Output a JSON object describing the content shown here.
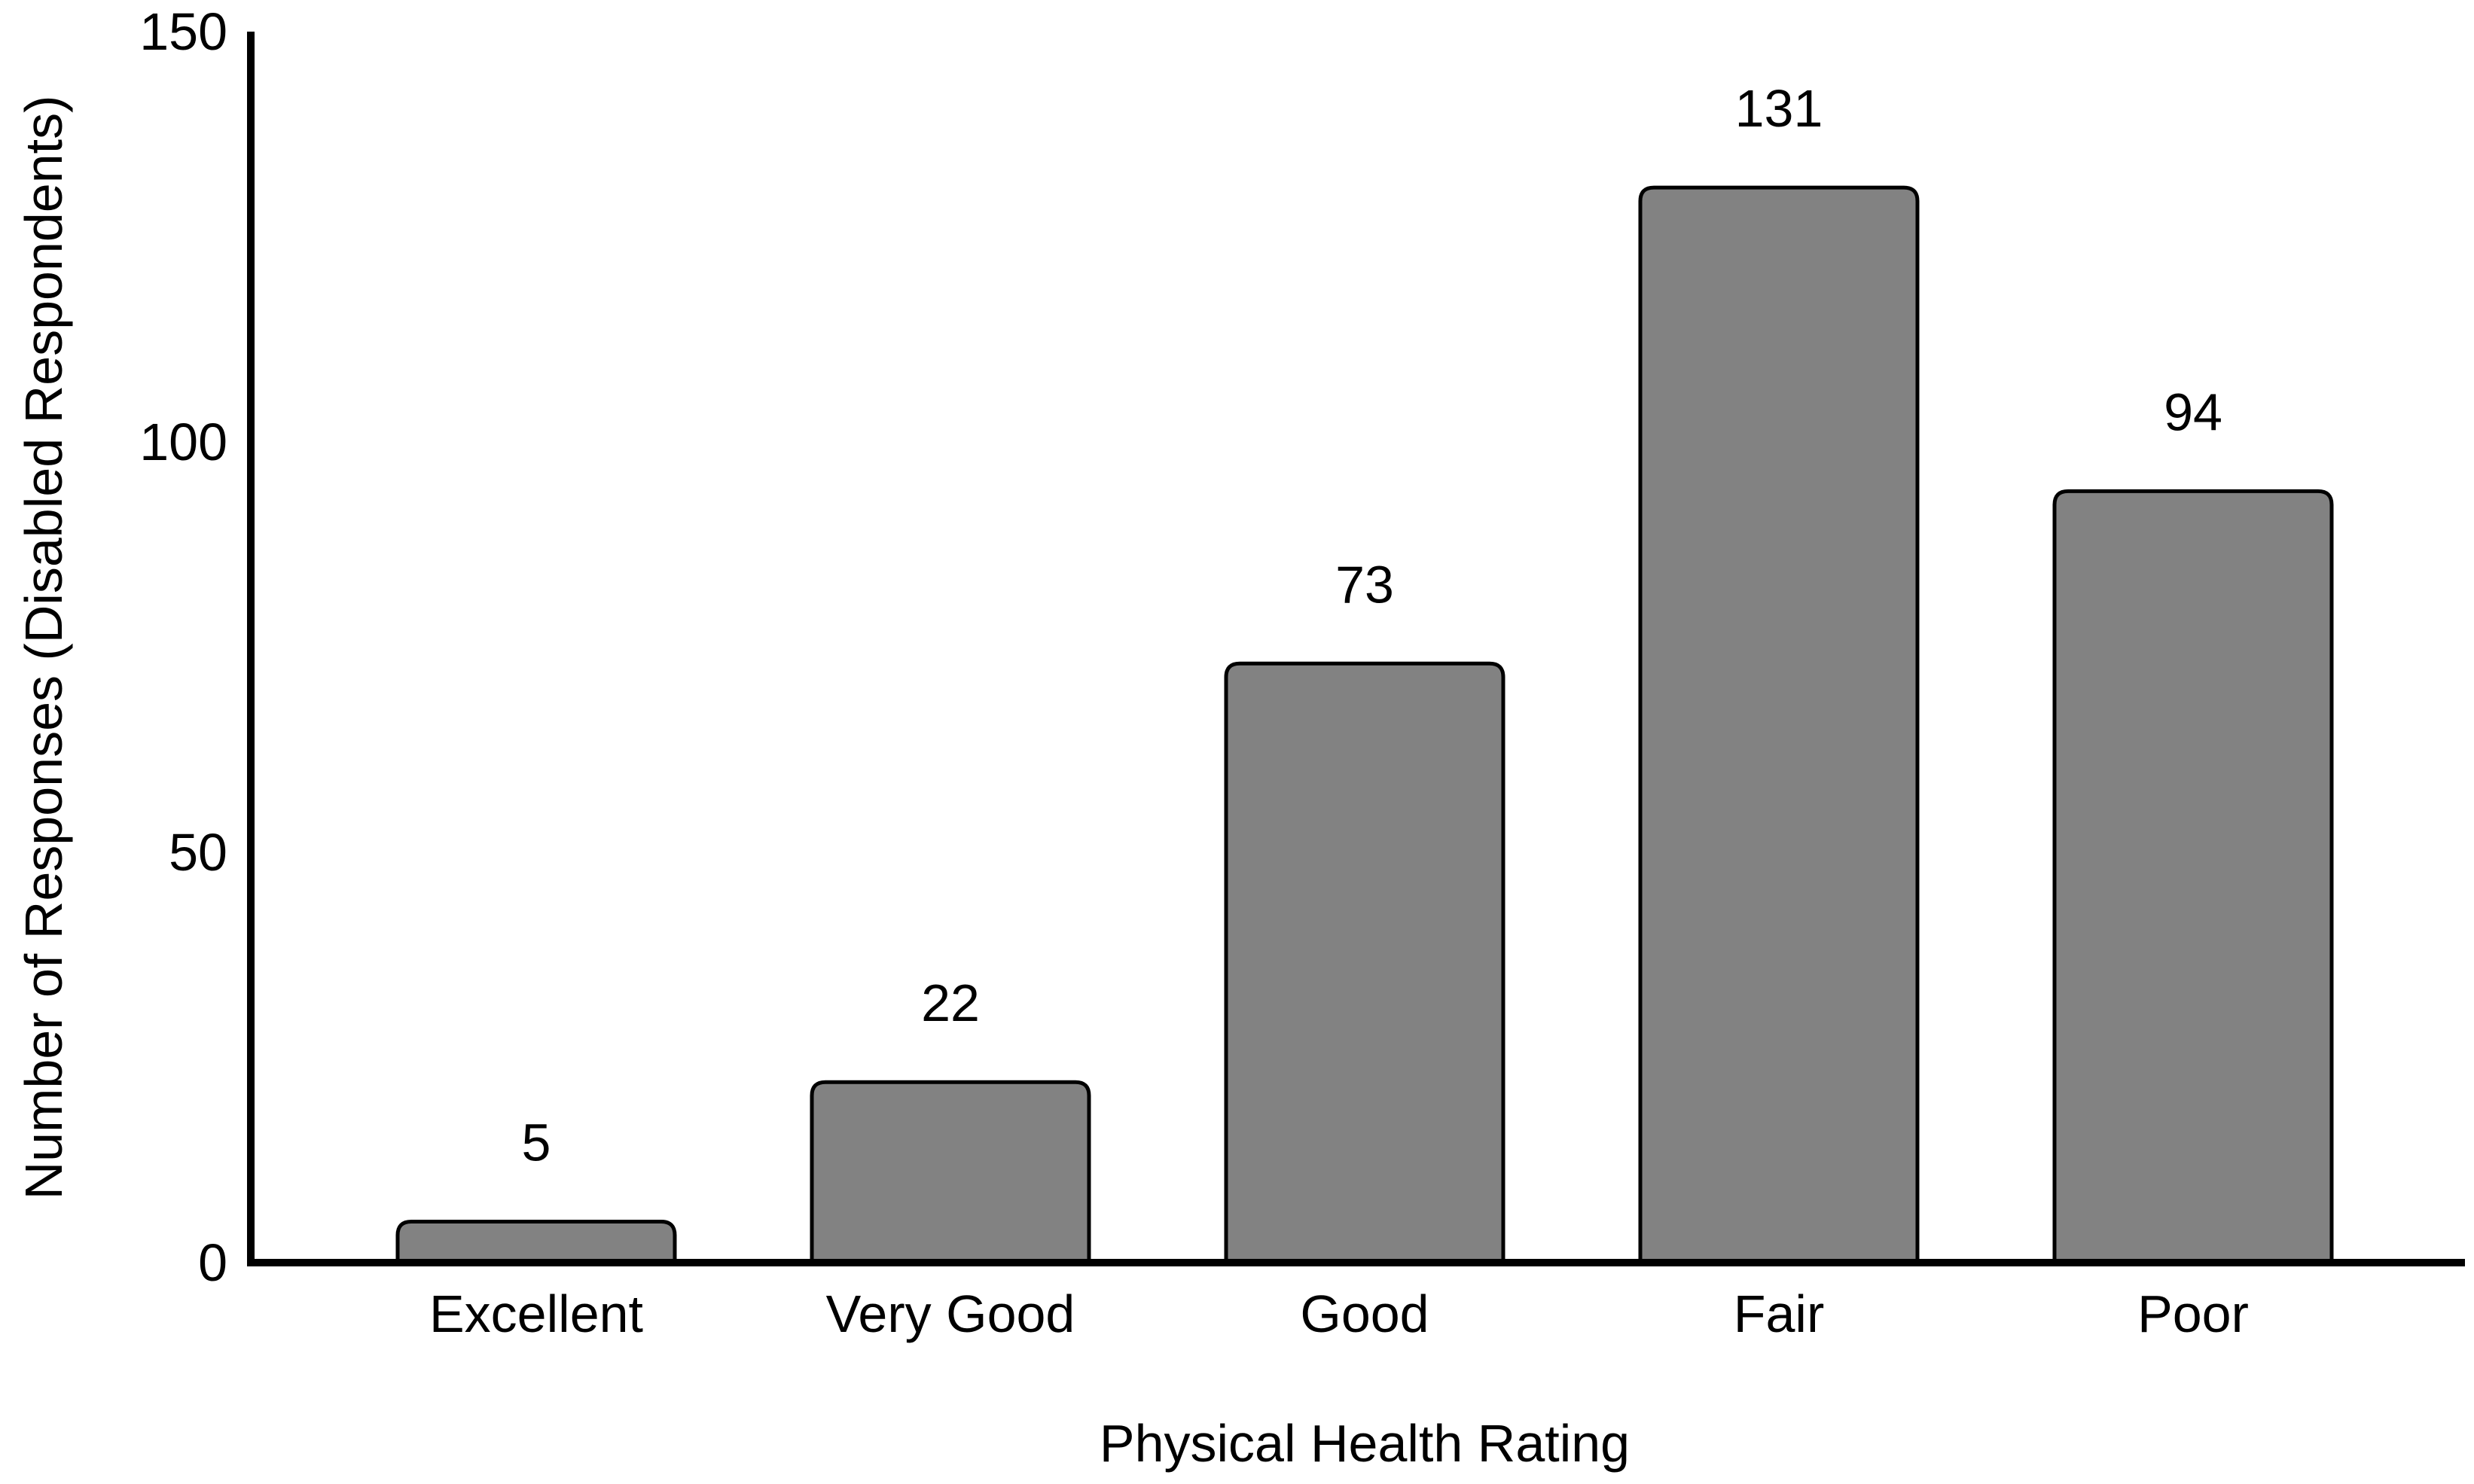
{
  "chart_data": {
    "type": "bar",
    "title": "",
    "xlabel": "Physical Health Rating",
    "ylabel": "Number of Responses (Disabled Respondents)",
    "categories": [
      "Excellent",
      "Very Good",
      "Good",
      "Fair",
      "Poor"
    ],
    "values": [
      5,
      22,
      73,
      131,
      94
    ],
    "value_labels": [
      "5",
      "22",
      "73",
      "131",
      "94"
    ],
    "yticks": [
      0,
      50,
      100,
      150
    ],
    "ylim": [
      0,
      150
    ],
    "grid": false,
    "legend": "none",
    "bar_fill": "#828282",
    "bar_border": "#000000",
    "axis_color": "#000000",
    "text_color": "#000000",
    "background": "#ffffff"
  }
}
